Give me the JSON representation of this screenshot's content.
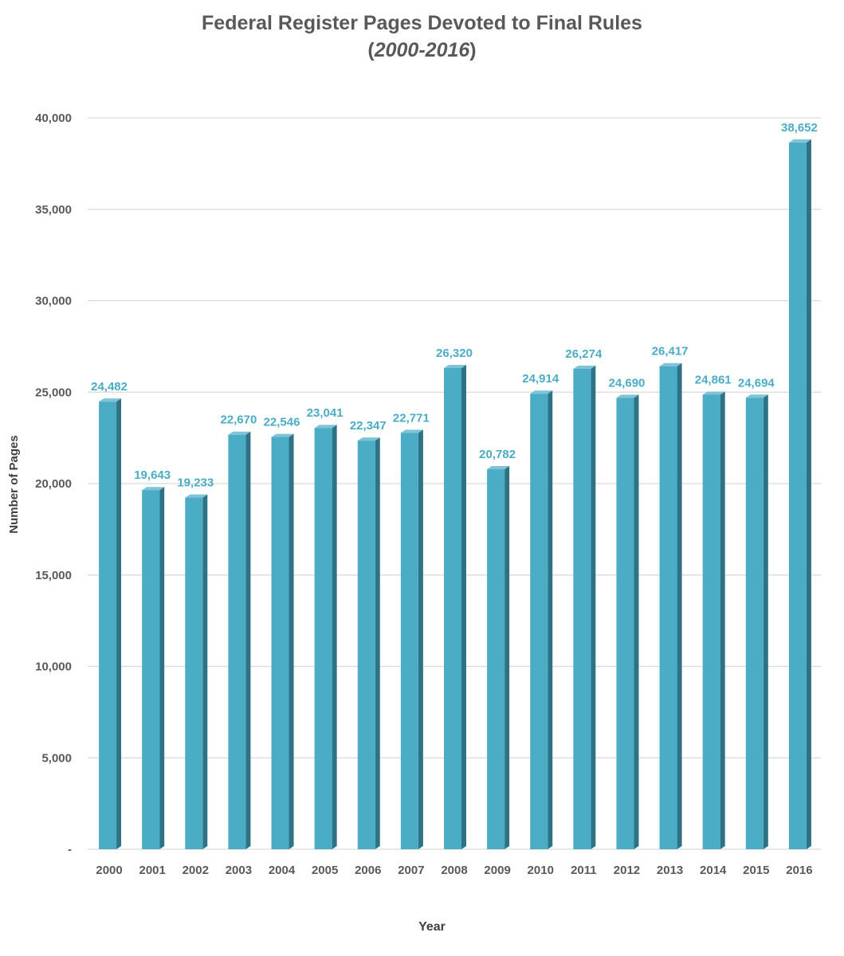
{
  "chart_data": {
    "type": "bar",
    "title": "Federal Register Pages Devoted to Final Rules",
    "subtitle_open": "(",
    "subtitle_italic": "2000-2016",
    "subtitle_close": ")",
    "xlabel": "Year",
    "ylabel": "Number of Pages",
    "categories": [
      "2000",
      "2001",
      "2002",
      "2003",
      "2004",
      "2005",
      "2006",
      "2007",
      "2008",
      "2009",
      "2010",
      "2011",
      "2012",
      "2013",
      "2014",
      "2015",
      "2016"
    ],
    "values": [
      24482,
      19643,
      19233,
      22670,
      22546,
      23041,
      22347,
      22771,
      26320,
      20782,
      24914,
      26274,
      24690,
      26417,
      24861,
      24694,
      38652
    ],
    "value_labels": [
      "24,482",
      "19,643",
      "19,233",
      "22,670",
      "22,546",
      "23,041",
      "22,347",
      "22,771",
      "26,320",
      "20,782",
      "24,914",
      "26,274",
      "24,690",
      "26,417",
      "24,861",
      "24,694",
      "38,652"
    ],
    "ylim": [
      0,
      40000
    ],
    "yticks": [
      0,
      5000,
      10000,
      15000,
      20000,
      25000,
      30000,
      35000,
      40000
    ],
    "ytick_labels": [
      "-",
      "5,000",
      "10,000",
      "15,000",
      "20,000",
      "25,000",
      "30,000",
      "35,000",
      "40,000"
    ],
    "grid": true,
    "colors": {
      "bar_front": "#4AACC5",
      "bar_side": "#2E7286",
      "bar_top": "#7FC3D6",
      "label": "#4AACC5",
      "grid": "#D9D9D9"
    }
  }
}
